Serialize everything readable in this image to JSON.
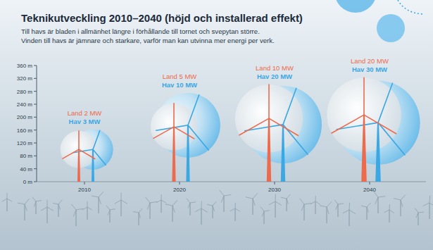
{
  "chart_data": {
    "type": "turbine",
    "title": "Teknikutveckling 2010–2040 (höjd och installerad effekt)",
    "subtitle": [
      "Till havs är bladen i allmänhet längre i förhållande till tornet och svepytan större.",
      "Vinden till havs är jämnare och starkare, varför man kan utvinna mer energi per verk."
    ],
    "categories": [
      "2010",
      "2020",
      "2030",
      "2040"
    ],
    "series": [
      {
        "name": "Land",
        "color": "#ee6a4d",
        "values": [
          100,
          170,
          196,
          207
        ],
        "rotor_diameter": [
          115,
          145,
          210,
          230
        ],
        "effect_mw": [
          2,
          5,
          10,
          20
        ],
        "effect_labels": [
          "Land 2 MW",
          "Land 5 MW",
          "Land 10 MW",
          "Land 20 MW"
        ]
      },
      {
        "name": "Hav",
        "color": "#3ba7e3",
        "values": [
          100,
          175,
          177,
          183
        ],
        "rotor_diameter": [
          125,
          200,
          240,
          260
        ],
        "effect_mw": [
          3,
          10,
          20,
          30
        ],
        "effect_labels": [
          "Hav 3 MW",
          "Hav 10 MW",
          "Hav 20 MW",
          "Hav 30 MW"
        ]
      }
    ],
    "ylim": [
      0,
      360
    ],
    "yticks": [
      {
        "value": 0,
        "label": "0 m"
      },
      {
        "value": 40,
        "label": "40 m"
      },
      {
        "value": 80,
        "label": "80 m"
      },
      {
        "value": 120,
        "label": "120 m"
      },
      {
        "value": 160,
        "label": "160 m"
      },
      {
        "value": 200,
        "label": "200 m"
      },
      {
        "value": 240,
        "label": "240 m"
      },
      {
        "value": 280,
        "label": "280 m"
      },
      {
        "value": 320,
        "label": "320 m"
      },
      {
        "value": 360,
        "label": "360 m"
      }
    ],
    "grid": false
  }
}
